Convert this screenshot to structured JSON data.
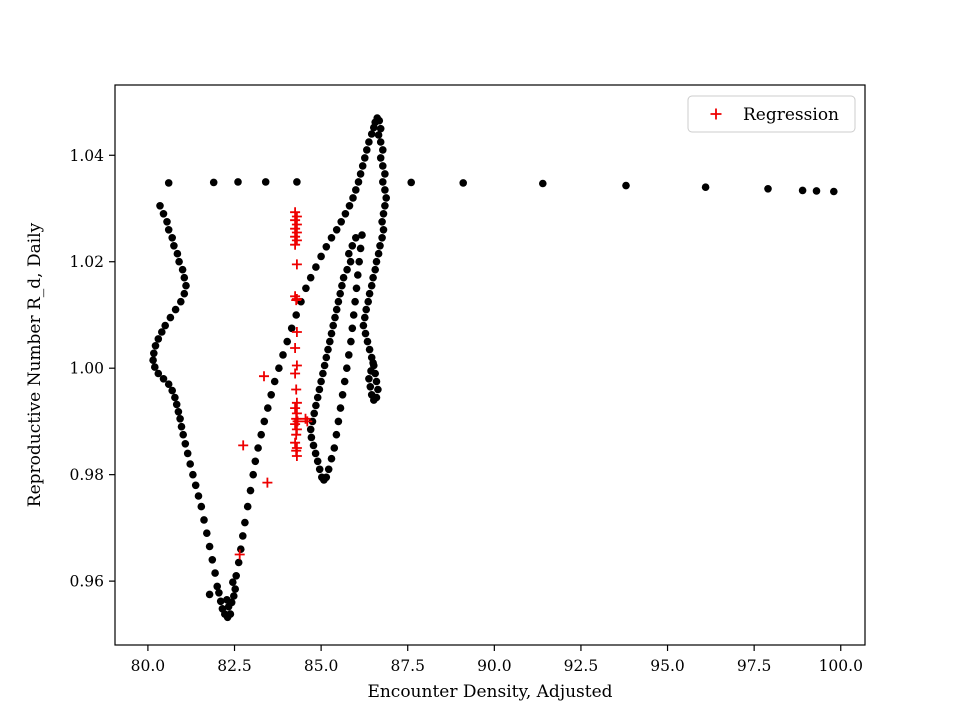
{
  "figure": {
    "background": "#ffffff"
  },
  "chart_data": {
    "type": "scatter",
    "title": "",
    "xlabel": "Encounter Density, Adjusted",
    "ylabel": "Reproductive Number R_d, Daily",
    "xlim": [
      79.05,
      100.7
    ],
    "ylim": [
      0.948,
      1.0532
    ],
    "grid": false,
    "xticks": [
      80.0,
      82.5,
      85.0,
      87.5,
      90.0,
      92.5,
      95.0,
      97.5,
      100.0
    ],
    "xtick_labels": [
      "80.0",
      "82.5",
      "85.0",
      "87.5",
      "90.0",
      "92.5",
      "95.0",
      "97.5",
      "100.0"
    ],
    "yticks": [
      0.96,
      0.98,
      1.0,
      1.02,
      1.04
    ],
    "ytick_labels": [
      "0.96",
      "0.98",
      "1.00",
      "1.02",
      "1.04"
    ],
    "legend": {
      "position": "upper right",
      "entries": [
        {
          "label": "Regression",
          "marker": "plus",
          "color": "#ee0000"
        }
      ]
    },
    "colors": {
      "dots": "#000000",
      "regression": "#ee0000",
      "legend_border": "#cccccc",
      "spine": "#000000"
    },
    "series": [
      {
        "name": "trajectory-dots",
        "marker": "circle",
        "color": "#000000",
        "points": [
          [
            80.6,
            1.0348
          ],
          [
            81.9,
            1.0349
          ],
          [
            82.6,
            1.035
          ],
          [
            83.4,
            1.035
          ],
          [
            84.3,
            1.035
          ],
          [
            87.6,
            1.0349
          ],
          [
            89.1,
            1.0348
          ],
          [
            91.4,
            1.0347
          ],
          [
            93.8,
            1.0343
          ],
          [
            96.1,
            1.034
          ],
          [
            97.9,
            1.0337
          ],
          [
            98.9,
            1.0334
          ],
          [
            99.3,
            1.0333
          ],
          [
            99.8,
            1.0332
          ],
          [
            80.35,
            1.0305
          ],
          [
            80.45,
            1.029
          ],
          [
            80.55,
            1.0275
          ],
          [
            80.6,
            1.026
          ],
          [
            80.7,
            1.0245
          ],
          [
            80.75,
            1.023
          ],
          [
            80.85,
            1.0215
          ],
          [
            80.9,
            1.02
          ],
          [
            81.0,
            1.0185
          ],
          [
            81.05,
            1.017
          ],
          [
            81.1,
            1.0155
          ],
          [
            81.05,
            1.014
          ],
          [
            80.95,
            1.0125
          ],
          [
            80.8,
            1.011
          ],
          [
            80.65,
            1.0095
          ],
          [
            80.5,
            1.008
          ],
          [
            80.4,
            1.0068
          ],
          [
            80.3,
            1.0055
          ],
          [
            80.22,
            1.0042
          ],
          [
            80.17,
            1.0028
          ],
          [
            80.15,
            1.0015
          ],
          [
            80.2,
            1.0002
          ],
          [
            80.3,
            0.999
          ],
          [
            80.45,
            0.998
          ],
          [
            80.6,
            0.997
          ],
          [
            80.7,
            0.9958
          ],
          [
            80.78,
            0.9945
          ],
          [
            80.83,
            0.9932
          ],
          [
            80.88,
            0.9918
          ],
          [
            80.93,
            0.9905
          ],
          [
            80.97,
            0.989
          ],
          [
            81.02,
            0.9875
          ],
          [
            81.08,
            0.9858
          ],
          [
            81.15,
            0.984
          ],
          [
            81.22,
            0.982
          ],
          [
            81.3,
            0.98
          ],
          [
            81.38,
            0.978
          ],
          [
            81.46,
            0.976
          ],
          [
            81.54,
            0.974
          ],
          [
            81.62,
            0.9715
          ],
          [
            81.7,
            0.969
          ],
          [
            81.78,
            0.9665
          ],
          [
            81.86,
            0.964
          ],
          [
            81.94,
            0.9615
          ],
          [
            82.0,
            0.959
          ],
          [
            81.78,
            0.9575
          ],
          [
            82.05,
            0.9578
          ],
          [
            82.1,
            0.9562
          ],
          [
            82.15,
            0.9548
          ],
          [
            82.22,
            0.9538
          ],
          [
            82.3,
            0.9532
          ],
          [
            82.38,
            0.9538
          ],
          [
            82.33,
            0.9552
          ],
          [
            82.28,
            0.9565
          ],
          [
            82.42,
            0.956
          ],
          [
            82.48,
            0.9572
          ],
          [
            82.52,
            0.9585
          ],
          [
            82.45,
            0.9598
          ],
          [
            82.55,
            0.961
          ],
          [
            82.62,
            0.9635
          ],
          [
            82.68,
            0.966
          ],
          [
            82.74,
            0.9685
          ],
          [
            82.8,
            0.971
          ],
          [
            82.88,
            0.974
          ],
          [
            82.96,
            0.977
          ],
          [
            83.04,
            0.98
          ],
          [
            83.1,
            0.9825
          ],
          [
            83.18,
            0.985
          ],
          [
            83.27,
            0.9875
          ],
          [
            83.36,
            0.99
          ],
          [
            83.46,
            0.9925
          ],
          [
            83.56,
            0.995
          ],
          [
            83.66,
            0.9975
          ],
          [
            83.78,
            1.0
          ],
          [
            83.9,
            1.0025
          ],
          [
            84.02,
            1.005
          ],
          [
            84.15,
            1.0075
          ],
          [
            84.28,
            1.01
          ],
          [
            84.42,
            1.0125
          ],
          [
            84.56,
            1.015
          ],
          [
            84.7,
            1.017
          ],
          [
            84.85,
            1.019
          ],
          [
            85.0,
            1.021
          ],
          [
            85.15,
            1.0228
          ],
          [
            85.3,
            1.0245
          ],
          [
            85.45,
            1.026
          ],
          [
            85.58,
            1.0275
          ],
          [
            85.7,
            1.029
          ],
          [
            85.82,
            1.0305
          ],
          [
            85.92,
            1.032
          ],
          [
            86.0,
            1.0335
          ],
          [
            86.08,
            1.035
          ],
          [
            86.14,
            1.0365
          ],
          [
            86.2,
            1.038
          ],
          [
            86.26,
            1.0395
          ],
          [
            86.32,
            1.041
          ],
          [
            86.38,
            1.0425
          ],
          [
            86.46,
            1.044
          ],
          [
            86.52,
            1.0452
          ],
          [
            86.56,
            1.0462
          ],
          [
            86.62,
            1.047
          ],
          [
            86.68,
            1.0465
          ],
          [
            86.72,
            1.045
          ],
          [
            86.66,
            1.0438
          ],
          [
            86.72,
            1.0425
          ],
          [
            86.78,
            1.041
          ],
          [
            86.72,
            1.0395
          ],
          [
            86.78,
            1.038
          ],
          [
            86.84,
            1.0365
          ],
          [
            86.78,
            1.035
          ],
          [
            86.84,
            1.0335
          ],
          [
            86.88,
            1.032
          ],
          [
            86.84,
            1.0305
          ],
          [
            86.8,
            1.029
          ],
          [
            86.76,
            1.0275
          ],
          [
            86.8,
            1.026
          ],
          [
            86.76,
            1.0245
          ],
          [
            86.7,
            1.023
          ],
          [
            86.66,
            1.0215
          ],
          [
            86.6,
            1.02
          ],
          [
            86.56,
            1.0185
          ],
          [
            86.5,
            1.017
          ],
          [
            86.46,
            1.0155
          ],
          [
            86.4,
            1.014
          ],
          [
            86.36,
            1.0125
          ],
          [
            86.3,
            1.011
          ],
          [
            86.26,
            1.0095
          ],
          [
            86.22,
            1.008
          ],
          [
            86.28,
            1.0065
          ],
          [
            86.34,
            1.005
          ],
          [
            86.4,
            1.0035
          ],
          [
            86.46,
            1.002
          ],
          [
            86.52,
            1.0005
          ],
          [
            86.56,
            0.999
          ],
          [
            86.6,
            0.9975
          ],
          [
            86.64,
            0.996
          ],
          [
            86.6,
            0.9945
          ],
          [
            86.52,
            0.994
          ],
          [
            86.46,
            0.995
          ],
          [
            86.42,
            0.9965
          ],
          [
            86.38,
            0.998
          ],
          [
            86.44,
            0.9995
          ],
          [
            86.5,
            1.001
          ],
          [
            86.0,
            1.0245
          ],
          [
            85.9,
            1.023
          ],
          [
            85.8,
            1.0215
          ],
          [
            85.85,
            1.02
          ],
          [
            85.75,
            1.0185
          ],
          [
            85.65,
            1.017
          ],
          [
            85.6,
            1.0155
          ],
          [
            85.55,
            1.014
          ],
          [
            85.5,
            1.0125
          ],
          [
            85.45,
            1.011
          ],
          [
            85.4,
            1.0095
          ],
          [
            85.35,
            1.008
          ],
          [
            85.3,
            1.0065
          ],
          [
            85.25,
            1.005
          ],
          [
            85.2,
            1.0035
          ],
          [
            85.15,
            1.002
          ],
          [
            85.1,
            1.0005
          ],
          [
            85.05,
            0.999
          ],
          [
            85.0,
            0.9975
          ],
          [
            84.95,
            0.996
          ],
          [
            84.9,
            0.9945
          ],
          [
            84.85,
            0.993
          ],
          [
            84.8,
            0.9915
          ],
          [
            84.75,
            0.99
          ],
          [
            84.7,
            0.9885
          ],
          [
            84.72,
            0.987
          ],
          [
            84.78,
            0.9855
          ],
          [
            84.84,
            0.984
          ],
          [
            84.9,
            0.9825
          ],
          [
            84.96,
            0.981
          ],
          [
            85.02,
            0.9795
          ],
          [
            85.08,
            0.979
          ],
          [
            85.15,
            0.9795
          ],
          [
            85.22,
            0.981
          ],
          [
            85.3,
            0.983
          ],
          [
            85.38,
            0.985
          ],
          [
            85.44,
            0.9875
          ],
          [
            85.5,
            0.99
          ],
          [
            85.56,
            0.9925
          ],
          [
            85.62,
            0.995
          ],
          [
            85.68,
            0.9975
          ],
          [
            85.74,
            1.0
          ],
          [
            85.8,
            1.0025
          ],
          [
            85.86,
            1.005
          ],
          [
            85.9,
            1.0075
          ],
          [
            85.94,
            1.01
          ],
          [
            85.98,
            1.0125
          ],
          [
            86.02,
            1.015
          ],
          [
            86.06,
            1.0175
          ],
          [
            86.1,
            1.02
          ],
          [
            86.14,
            1.0225
          ],
          [
            86.18,
            1.025
          ]
        ]
      },
      {
        "name": "Regression",
        "marker": "plus",
        "color": "#ee0000",
        "points": [
          [
            84.25,
            1.0293
          ],
          [
            84.3,
            1.0285
          ],
          [
            84.25,
            1.0278
          ],
          [
            84.3,
            1.027
          ],
          [
            84.25,
            1.0262
          ],
          [
            84.3,
            1.0255
          ],
          [
            84.25,
            1.0247
          ],
          [
            84.3,
            1.024
          ],
          [
            84.25,
            1.0232
          ],
          [
            84.3,
            1.0195
          ],
          [
            84.25,
            1.0135
          ],
          [
            84.3,
            1.013
          ],
          [
            84.28,
            1.0128
          ],
          [
            84.3,
            1.0068
          ],
          [
            84.25,
            1.0038
          ],
          [
            84.3,
            1.0005
          ],
          [
            84.25,
            0.999
          ],
          [
            84.28,
            0.996
          ],
          [
            84.3,
            0.9935
          ],
          [
            84.25,
            0.9925
          ],
          [
            84.3,
            0.9915
          ],
          [
            84.28,
            0.9905
          ],
          [
            84.32,
            0.99
          ],
          [
            84.25,
            0.9895
          ],
          [
            84.3,
            0.9885
          ],
          [
            84.28,
            0.9875
          ],
          [
            84.25,
            0.986
          ],
          [
            84.3,
            0.985
          ],
          [
            84.28,
            0.9845
          ],
          [
            84.3,
            0.9835
          ],
          [
            83.35,
            0.9985
          ],
          [
            83.45,
            0.9785
          ],
          [
            82.75,
            0.9855
          ],
          [
            82.65,
            0.965
          ],
          [
            84.55,
            0.9905
          ],
          [
            84.6,
            0.99
          ]
        ]
      }
    ]
  }
}
